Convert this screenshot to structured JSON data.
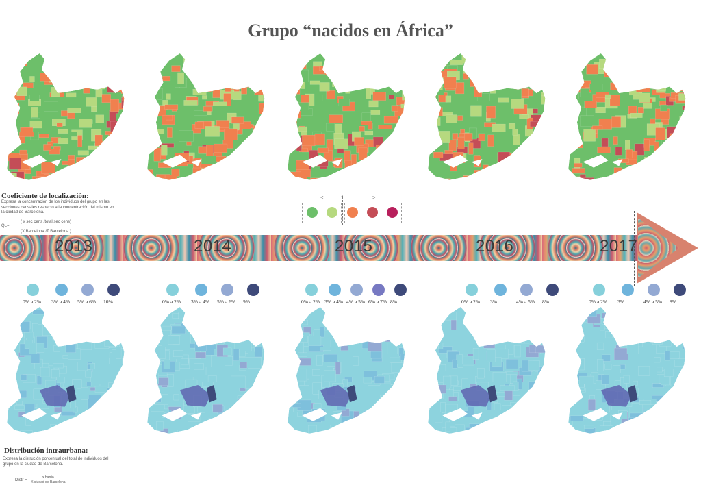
{
  "title": "Grupo “nacidos en África”",
  "ql": {
    "heading": "Coeficiente de localización:",
    "description": "Expresa la concentración de los individuos del grupo en las secciones censales respecto a la concentración del mismo en la ciudad de Barcelona.",
    "formula_label": "QL=",
    "numerator": "( x sec cens /total sec cens)",
    "denominator": "(X Barcelona /T Barcelona )"
  },
  "ql_legend": {
    "less": "<",
    "one": "1",
    "greater": ">",
    "colors": [
      "#6dbf6a",
      "#b6d97f",
      "#f0804f",
      "#c44d57",
      "#b81f5c"
    ]
  },
  "years": [
    "2013",
    "2014",
    "2015",
    "2016",
    "2017"
  ],
  "pct_legends": [
    {
      "labels": [
        "0% a 2%",
        "3% a 4%",
        "5% a 6%",
        "10%"
      ],
      "colors": [
        "#86d0db",
        "#6fb4dc",
        "#93a9d3",
        "#3e4a7a"
      ]
    },
    {
      "labels": [
        "0% a 2%",
        "3% a 4%",
        "5% a 6%",
        "9%"
      ],
      "colors": [
        "#86d0db",
        "#6fb4dc",
        "#93a9d3",
        "#3e4a7a"
      ]
    },
    {
      "labels": [
        "0% a 2%",
        "3% a 4%",
        "4% a 5%",
        "6% a 7%",
        "8%"
      ],
      "colors": [
        "#86d0db",
        "#6fb4dc",
        "#93a9d3",
        "#7779c2",
        "#3e4a7a"
      ]
    },
    {
      "labels": [
        "0% a 2%",
        "3%",
        "4% a 5%",
        "8%"
      ],
      "colors": [
        "#86d0db",
        "#6fb4dc",
        "#93a9d3",
        "#3e4a7a"
      ]
    },
    {
      "labels": [
        "0% a 2%",
        "3%",
        "4% a 5%",
        "8%"
      ],
      "colors": [
        "#86d0db",
        "#6fb4dc",
        "#93a9d3",
        "#3e4a7a"
      ]
    }
  ],
  "di": {
    "heading": "Distribución intraurbana:",
    "description": "Expresa la distrución porcentual del total de individuos del grupo en la ciudad de Barcelona.",
    "formula_label": "Distr =",
    "numerator": "x barrio",
    "denominator": "X ciudad de Barcelona"
  }
}
